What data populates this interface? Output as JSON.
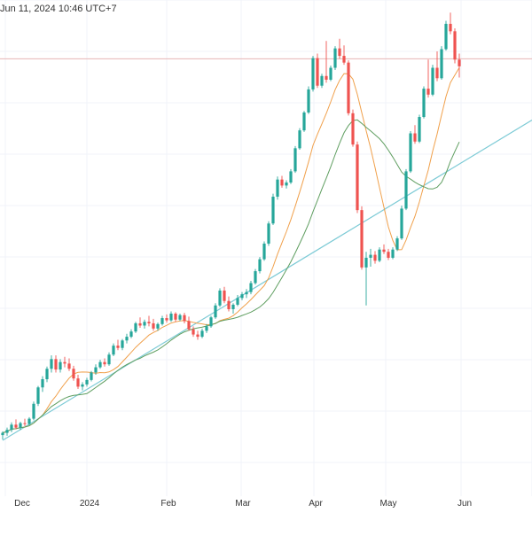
{
  "header": {
    "timestamp": "Jun 11, 2024 10:46 UTC+7"
  },
  "colors": {
    "up": "#26a69a",
    "down": "#ef5350",
    "ma_fast": "#f0a04b",
    "ma_slow": "#5f9e60",
    "trendline": "#7ecbd6",
    "reference_line": "#e7b5b5",
    "grid": "#f0f3fa"
  },
  "chart_data": {
    "type": "candlestick",
    "x_ticks": [
      "Dec",
      "2024",
      "Feb",
      "Mar",
      "Apr",
      "May",
      "Jun"
    ],
    "grid": true,
    "candles": [
      {
        "o": 44.6,
        "h": 45.1,
        "l": 44.0,
        "c": 44.9
      },
      {
        "o": 44.9,
        "h": 45.6,
        "l": 44.5,
        "c": 45.3
      },
      {
        "o": 45.3,
        "h": 46.3,
        "l": 45.0,
        "c": 46.0
      },
      {
        "o": 46.0,
        "h": 46.7,
        "l": 45.4,
        "c": 45.6
      },
      {
        "o": 45.6,
        "h": 46.4,
        "l": 45.3,
        "c": 46.2
      },
      {
        "o": 46.2,
        "h": 46.8,
        "l": 45.8,
        "c": 46.1
      },
      {
        "o": 46.1,
        "h": 47.0,
        "l": 45.9,
        "c": 46.8
      },
      {
        "o": 46.8,
        "h": 49.1,
        "l": 46.6,
        "c": 48.8
      },
      {
        "o": 48.8,
        "h": 51.2,
        "l": 48.5,
        "c": 51.0
      },
      {
        "o": 51.0,
        "h": 52.5,
        "l": 50.4,
        "c": 52.1
      },
      {
        "o": 52.1,
        "h": 53.8,
        "l": 51.7,
        "c": 53.5
      },
      {
        "o": 53.5,
        "h": 55.3,
        "l": 53.0,
        "c": 54.8
      },
      {
        "o": 54.8,
        "h": 55.3,
        "l": 53.0,
        "c": 53.4
      },
      {
        "o": 53.4,
        "h": 54.8,
        "l": 53.0,
        "c": 54.4
      },
      {
        "o": 54.4,
        "h": 55.1,
        "l": 53.7,
        "c": 54.2
      },
      {
        "o": 54.2,
        "h": 54.9,
        "l": 53.2,
        "c": 53.5
      },
      {
        "o": 53.5,
        "h": 53.9,
        "l": 51.9,
        "c": 52.2
      },
      {
        "o": 52.2,
        "h": 52.7,
        "l": 50.8,
        "c": 51.1
      },
      {
        "o": 51.1,
        "h": 51.7,
        "l": 50.6,
        "c": 51.4
      },
      {
        "o": 51.4,
        "h": 52.3,
        "l": 51.1,
        "c": 52.0
      },
      {
        "o": 52.0,
        "h": 53.2,
        "l": 51.8,
        "c": 53.0
      },
      {
        "o": 53.0,
        "h": 54.1,
        "l": 52.7,
        "c": 53.7
      },
      {
        "o": 53.7,
        "h": 54.7,
        "l": 53.5,
        "c": 54.4
      },
      {
        "o": 54.4,
        "h": 54.9,
        "l": 53.8,
        "c": 54.1
      },
      {
        "o": 54.1,
        "h": 55.7,
        "l": 53.9,
        "c": 55.4
      },
      {
        "o": 55.4,
        "h": 56.9,
        "l": 55.2,
        "c": 56.6
      },
      {
        "o": 56.6,
        "h": 57.4,
        "l": 56.0,
        "c": 56.3
      },
      {
        "o": 56.3,
        "h": 57.5,
        "l": 56.0,
        "c": 57.3
      },
      {
        "o": 57.3,
        "h": 58.2,
        "l": 56.9,
        "c": 57.8
      },
      {
        "o": 57.8,
        "h": 58.8,
        "l": 57.6,
        "c": 58.5
      },
      {
        "o": 58.5,
        "h": 59.8,
        "l": 58.3,
        "c": 59.6
      },
      {
        "o": 59.6,
        "h": 60.4,
        "l": 59.0,
        "c": 59.3
      },
      {
        "o": 59.3,
        "h": 60.1,
        "l": 58.9,
        "c": 59.8
      },
      {
        "o": 59.8,
        "h": 60.6,
        "l": 59.2,
        "c": 59.6
      },
      {
        "o": 59.6,
        "h": 60.2,
        "l": 58.6,
        "c": 58.9
      },
      {
        "o": 58.9,
        "h": 59.7,
        "l": 58.6,
        "c": 59.5
      },
      {
        "o": 59.5,
        "h": 60.6,
        "l": 59.3,
        "c": 60.3
      },
      {
        "o": 60.3,
        "h": 60.8,
        "l": 59.7,
        "c": 60.0
      },
      {
        "o": 60.0,
        "h": 61.2,
        "l": 59.8,
        "c": 60.9
      },
      {
        "o": 60.9,
        "h": 61.1,
        "l": 59.8,
        "c": 60.1
      },
      {
        "o": 60.1,
        "h": 60.9,
        "l": 59.9,
        "c": 60.7
      },
      {
        "o": 60.7,
        "h": 61.0,
        "l": 59.6,
        "c": 59.9
      },
      {
        "o": 59.9,
        "h": 60.5,
        "l": 58.6,
        "c": 58.8
      },
      {
        "o": 58.8,
        "h": 59.2,
        "l": 57.8,
        "c": 58.1
      },
      {
        "o": 58.1,
        "h": 58.6,
        "l": 57.4,
        "c": 57.8
      },
      {
        "o": 57.8,
        "h": 58.9,
        "l": 57.6,
        "c": 58.6
      },
      {
        "o": 58.6,
        "h": 59.5,
        "l": 58.3,
        "c": 59.2
      },
      {
        "o": 59.2,
        "h": 60.6,
        "l": 59.0,
        "c": 60.4
      },
      {
        "o": 60.4,
        "h": 62.3,
        "l": 60.2,
        "c": 62.0
      },
      {
        "o": 62.0,
        "h": 64.3,
        "l": 61.8,
        "c": 64.0
      },
      {
        "o": 64.0,
        "h": 64.5,
        "l": 62.3,
        "c": 62.6
      },
      {
        "o": 62.6,
        "h": 63.2,
        "l": 61.2,
        "c": 61.5
      },
      {
        "o": 61.5,
        "h": 62.3,
        "l": 60.9,
        "c": 62.1
      },
      {
        "o": 62.1,
        "h": 63.4,
        "l": 61.9,
        "c": 63.0
      },
      {
        "o": 63.0,
        "h": 63.8,
        "l": 62.7,
        "c": 63.5
      },
      {
        "o": 63.5,
        "h": 64.2,
        "l": 63.0,
        "c": 63.8
      },
      {
        "o": 63.8,
        "h": 65.3,
        "l": 63.5,
        "c": 65.0
      },
      {
        "o": 65.0,
        "h": 66.9,
        "l": 64.8,
        "c": 66.6
      },
      {
        "o": 66.6,
        "h": 68.5,
        "l": 66.3,
        "c": 68.2
      },
      {
        "o": 68.2,
        "h": 70.6,
        "l": 68.0,
        "c": 70.3
      },
      {
        "o": 70.3,
        "h": 73.3,
        "l": 70.0,
        "c": 73.0
      },
      {
        "o": 73.0,
        "h": 77.0,
        "l": 72.8,
        "c": 76.6
      },
      {
        "o": 76.6,
        "h": 79.3,
        "l": 76.2,
        "c": 78.9
      },
      {
        "o": 78.9,
        "h": 79.4,
        "l": 77.8,
        "c": 78.1
      },
      {
        "o": 78.1,
        "h": 78.8,
        "l": 77.7,
        "c": 78.5
      },
      {
        "o": 78.5,
        "h": 80.3,
        "l": 78.3,
        "c": 80.0
      },
      {
        "o": 80.0,
        "h": 83.4,
        "l": 79.8,
        "c": 83.1
      },
      {
        "o": 83.1,
        "h": 85.8,
        "l": 82.9,
        "c": 85.5
      },
      {
        "o": 85.5,
        "h": 88.1,
        "l": 85.3,
        "c": 87.9
      },
      {
        "o": 87.9,
        "h": 91.4,
        "l": 87.7,
        "c": 91.0
      },
      {
        "o": 91.0,
        "h": 95.5,
        "l": 90.7,
        "c": 95.2
      },
      {
        "o": 95.2,
        "h": 95.8,
        "l": 91.2,
        "c": 91.5
      },
      {
        "o": 91.5,
        "h": 93.1,
        "l": 91.2,
        "c": 92.8
      },
      {
        "o": 92.8,
        "h": 97.5,
        "l": 91.9,
        "c": 92.3
      },
      {
        "o": 92.3,
        "h": 94.2,
        "l": 92.1,
        "c": 93.9
      },
      {
        "o": 93.9,
        "h": 96.8,
        "l": 93.6,
        "c": 96.5
      },
      {
        "o": 96.5,
        "h": 97.8,
        "l": 95.1,
        "c": 95.5
      },
      {
        "o": 95.5,
        "h": 96.9,
        "l": 94.3,
        "c": 94.6
      },
      {
        "o": 94.6,
        "h": 94.9,
        "l": 87.5,
        "c": 87.8
      },
      {
        "o": 87.8,
        "h": 88.3,
        "l": 83.3,
        "c": 83.6
      },
      {
        "o": 83.6,
        "h": 84.0,
        "l": 74.4,
        "c": 74.8
      },
      {
        "o": 74.8,
        "h": 75.3,
        "l": 66.8,
        "c": 67.1
      },
      {
        "o": 67.1,
        "h": 69.2,
        "l": 62.0,
        "c": 68.4
      },
      {
        "o": 68.4,
        "h": 69.6,
        "l": 67.2,
        "c": 68.8
      },
      {
        "o": 68.8,
        "h": 69.3,
        "l": 67.6,
        "c": 68.0
      },
      {
        "o": 68.0,
        "h": 69.8,
        "l": 67.8,
        "c": 69.5
      },
      {
        "o": 69.5,
        "h": 70.2,
        "l": 68.9,
        "c": 69.2
      },
      {
        "o": 69.2,
        "h": 69.6,
        "l": 68.1,
        "c": 68.4
      },
      {
        "o": 68.4,
        "h": 69.8,
        "l": 68.2,
        "c": 69.5
      },
      {
        "o": 69.5,
        "h": 71.3,
        "l": 69.3,
        "c": 71.0
      },
      {
        "o": 71.0,
        "h": 75.4,
        "l": 70.8,
        "c": 75.0
      },
      {
        "o": 75.0,
        "h": 80.3,
        "l": 74.8,
        "c": 80.0
      },
      {
        "o": 80.0,
        "h": 85.4,
        "l": 79.8,
        "c": 85.1
      },
      {
        "o": 85.1,
        "h": 86.2,
        "l": 83.7,
        "c": 84.0
      },
      {
        "o": 84.0,
        "h": 87.6,
        "l": 83.8,
        "c": 87.3
      },
      {
        "o": 87.3,
        "h": 91.4,
        "l": 87.1,
        "c": 91.1
      },
      {
        "o": 91.1,
        "h": 95.0,
        "l": 89.9,
        "c": 90.3
      },
      {
        "o": 90.3,
        "h": 94.3,
        "l": 90.1,
        "c": 93.9
      },
      {
        "o": 93.9,
        "h": 96.1,
        "l": 92.1,
        "c": 92.5
      },
      {
        "o": 92.5,
        "h": 96.8,
        "l": 92.3,
        "c": 96.4
      },
      {
        "o": 96.4,
        "h": 100.2,
        "l": 96.2,
        "c": 99.8
      },
      {
        "o": 99.8,
        "h": 101.3,
        "l": 98.4,
        "c": 98.8
      },
      {
        "o": 98.8,
        "h": 99.2,
        "l": 94.5,
        "c": 95.0
      },
      {
        "o": 95.0,
        "h": 95.8,
        "l": 92.6,
        "c": 94.1
      }
    ],
    "moving_averages": [
      {
        "period": 10,
        "color_key": "ma_fast"
      },
      {
        "period": 20,
        "color_key": "ma_slow"
      }
    ],
    "trendline": {
      "from": {
        "index": 0,
        "value": 43.9
      },
      "to": {
        "index": 110,
        "value": 83.5
      }
    },
    "reference_line": {
      "value": 95.1
    },
    "ylim": [
      37,
      103
    ]
  }
}
